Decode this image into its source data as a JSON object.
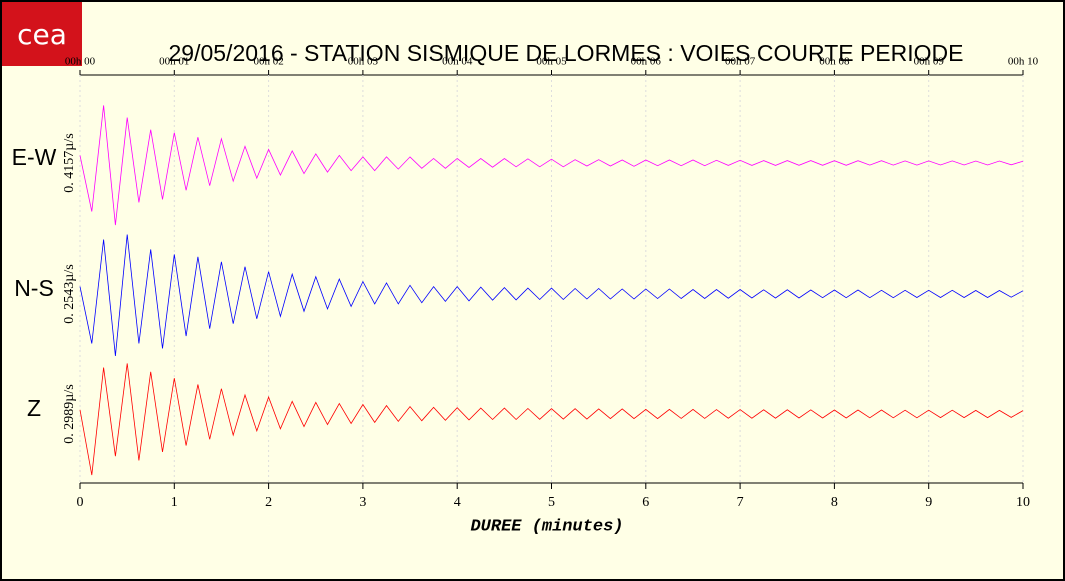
{
  "chart_data": {
    "type": "line",
    "logo": "cea",
    "title": "29/05/2016  -  STATION SISMIQUE DE LORMES : VOIES COURTE PERIODE",
    "xlabel": "DUREE (minutes)",
    "xlim": [
      0,
      10
    ],
    "xticks": [
      0,
      1,
      2,
      3,
      4,
      5,
      6,
      7,
      8,
      9,
      10
    ],
    "top_xticks": [
      {
        "value": 0,
        "label": "00h 00"
      },
      {
        "value": 1,
        "label": "00h 01"
      },
      {
        "value": 2,
        "label": "00h 02"
      },
      {
        "value": 3,
        "label": "00h 03"
      },
      {
        "value": 4,
        "label": "00h 04"
      },
      {
        "value": 5,
        "label": "00h 05"
      },
      {
        "value": 6,
        "label": "00h 06"
      },
      {
        "value": 7,
        "label": "00h 07"
      },
      {
        "value": 8,
        "label": "00h 08"
      },
      {
        "value": 9,
        "label": "00h 09"
      },
      {
        "value": 10,
        "label": "00h 10"
      }
    ],
    "x": [
      0,
      0.125,
      0.25,
      0.375,
      0.5,
      0.625,
      0.75,
      0.875,
      1,
      1.125,
      1.25,
      1.375,
      1.5,
      1.625,
      1.75,
      1.875,
      2,
      2.125,
      2.25,
      2.375,
      2.5,
      2.625,
      2.75,
      2.875,
      3,
      3.125,
      3.25,
      3.375,
      3.5,
      3.625,
      3.75,
      3.875,
      4,
      4.125,
      4.25,
      4.375,
      4.5,
      4.625,
      4.75,
      4.875,
      5,
      5.125,
      5.25,
      5.375,
      5.5,
      5.625,
      5.75,
      5.875,
      6,
      6.125,
      6.25,
      6.375,
      6.5,
      6.625,
      6.75,
      6.875,
      7,
      7.125,
      7.25,
      7.375,
      7.5,
      7.625,
      7.75,
      7.875,
      8,
      8.125,
      8.25,
      8.375,
      8.5,
      8.625,
      8.75,
      8.875,
      9,
      9.125,
      9.25,
      9.375,
      9.5,
      9.625,
      9.75,
      9.875,
      10
    ],
    "series": [
      {
        "name": "E-W",
        "scale_label": "0. 4157µ/s",
        "color": "#ff00ff",
        "ylim": [
          -0.4157,
          0.4157
        ],
        "values": [
          0.05,
          -0.32,
          0.38,
          -0.41,
          0.3,
          -0.26,
          0.22,
          -0.24,
          0.2,
          -0.18,
          0.17,
          -0.15,
          0.16,
          -0.12,
          0.11,
          -0.1,
          0.09,
          -0.08,
          0.08,
          -0.07,
          0.06,
          -0.06,
          0.05,
          -0.05,
          0.04,
          -0.05,
          0.04,
          -0.04,
          0.04,
          -0.035,
          0.03,
          -0.035,
          0.03,
          -0.03,
          0.03,
          -0.028,
          0.03,
          -0.025,
          0.028,
          -0.025,
          0.025,
          -0.025,
          0.022,
          -0.02,
          0.022,
          -0.02,
          0.02,
          -0.022,
          0.02,
          -0.018,
          0.02,
          -0.018,
          0.02,
          -0.018,
          0.018,
          -0.016,
          0.018,
          -0.016,
          0.016,
          -0.016,
          0.016,
          -0.015,
          0.016,
          -0.015,
          0.015,
          -0.015,
          0.015,
          -0.014,
          0.015,
          -0.014,
          0.014,
          -0.014,
          0.014,
          -0.013,
          0.014,
          -0.013,
          0.013,
          -0.013,
          0.013,
          -0.012,
          0.012
        ]
      },
      {
        "name": "N-S",
        "scale_label": "0. 2543µ/s",
        "color": "#0000ff",
        "ylim": [
          -0.2543,
          0.2543
        ],
        "values": [
          0.03,
          -0.2,
          0.22,
          -0.25,
          0.24,
          -0.2,
          0.18,
          -0.22,
          0.16,
          -0.17,
          0.15,
          -0.14,
          0.13,
          -0.12,
          0.11,
          -0.1,
          0.09,
          -0.09,
          0.08,
          -0.07,
          0.07,
          -0.06,
          0.06,
          -0.05,
          0.05,
          -0.04,
          0.045,
          -0.04,
          0.035,
          -0.035,
          0.03,
          -0.03,
          0.03,
          -0.028,
          0.028,
          -0.025,
          0.026,
          -0.024,
          0.024,
          -0.022,
          0.024,
          -0.022,
          0.022,
          -0.02,
          0.022,
          -0.02,
          0.02,
          -0.02,
          0.02,
          -0.018,
          0.02,
          -0.018,
          0.018,
          -0.018,
          0.018,
          -0.017,
          0.018,
          -0.016,
          0.017,
          -0.016,
          0.017,
          -0.016,
          0.016,
          -0.015,
          0.016,
          -0.015,
          0.016,
          -0.015,
          0.015,
          -0.015,
          0.015,
          -0.014,
          0.015,
          -0.014,
          0.015,
          -0.014,
          0.014,
          -0.014,
          0.014,
          -0.013,
          0.013
        ]
      },
      {
        "name": "Z",
        "scale_label": "0. 2989µ/s",
        "color": "#ff0000",
        "ylim": [
          -0.2989,
          0.2989
        ],
        "values": [
          0.02,
          -0.29,
          0.22,
          -0.2,
          0.24,
          -0.22,
          0.2,
          -0.18,
          0.17,
          -0.15,
          0.14,
          -0.12,
          0.12,
          -0.1,
          0.09,
          -0.08,
          0.08,
          -0.07,
          0.06,
          -0.06,
          0.055,
          -0.05,
          0.05,
          -0.045,
          0.045,
          -0.04,
          0.04,
          -0.035,
          0.035,
          -0.032,
          0.032,
          -0.03,
          0.03,
          -0.028,
          0.028,
          -0.026,
          0.028,
          -0.026,
          0.026,
          -0.025,
          0.025,
          -0.024,
          0.025,
          -0.024,
          0.024,
          -0.022,
          0.024,
          -0.022,
          0.022,
          -0.022,
          0.022,
          -0.021,
          0.022,
          -0.021,
          0.021,
          -0.02,
          0.021,
          -0.02,
          0.02,
          -0.02,
          0.02,
          -0.019,
          0.02,
          -0.019,
          0.019,
          -0.019,
          0.019,
          -0.018,
          0.019,
          -0.018,
          0.018,
          -0.018,
          0.018,
          -0.017,
          0.018,
          -0.017,
          0.017,
          -0.017,
          0.017,
          -0.016,
          0.016
        ]
      }
    ]
  }
}
